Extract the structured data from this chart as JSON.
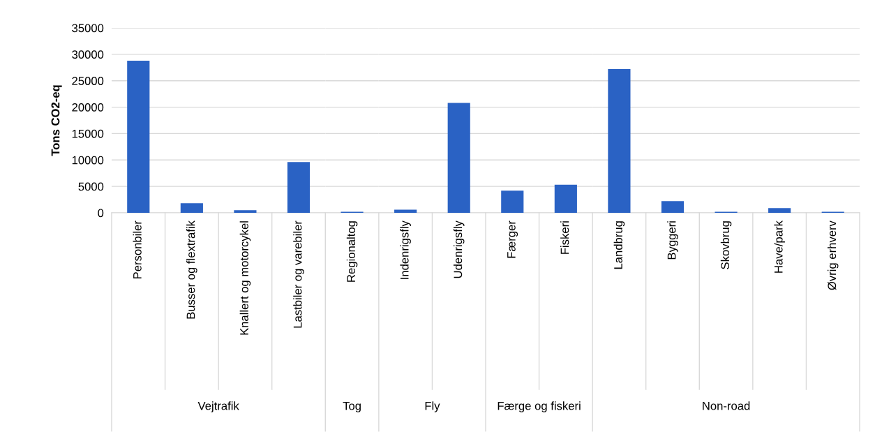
{
  "chart_data": [
    {
      "type": "bar",
      "ylabel": "Tons CO2-eq",
      "xlabel": "Vejtrafik",
      "categories": [
        "Personbiler",
        "Busser og flextrafik",
        "Knallert og motorcykel",
        "Lastbiler og varebiler"
      ],
      "values": [
        28800,
        1800,
        500,
        9600
      ],
      "color": "#2a62c4",
      "ylim": [
        0,
        35000
      ],
      "yticks": [
        0,
        5000,
        10000,
        15000,
        20000,
        25000,
        30000,
        35000
      ],
      "grid": "y"
    },
    {
      "type": "bar",
      "xlabel": "Tog",
      "categories": [
        "Regionaltog"
      ],
      "values": [
        200
      ],
      "color": "#2a62c4",
      "ylim": [
        0,
        35000
      ],
      "yticks": [
        0,
        5000,
        10000,
        15000,
        20000,
        25000,
        30000,
        35000
      ],
      "grid": "y",
      "tick_labels": "x"
    },
    {
      "type": "bar",
      "xlabel": "Fly",
      "categories": [
        "Indenrigsfly",
        "Udenrigsfly"
      ],
      "values": [
        600,
        20800
      ],
      "color": "#2a62c4",
      "ylim": [
        0,
        35000
      ],
      "yticks": [
        0,
        5000,
        10000,
        15000,
        20000,
        25000,
        30000,
        35000
      ],
      "grid": "y",
      "tick_labels": "x"
    },
    {
      "type": "bar",
      "xlabel": "Færge og fiskeri",
      "categories": [
        "Færger",
        "Fiskeri"
      ],
      "values": [
        4200,
        5300
      ],
      "color": "#2a62c4",
      "ylim": [
        0,
        35000
      ],
      "yticks": [
        0,
        5000,
        10000,
        15000,
        20000,
        25000,
        30000,
        35000
      ],
      "grid": "y",
      "tick_labels": "x"
    },
    {
      "type": "bar",
      "xlabel": "Non-road",
      "categories": [
        "Landbrug",
        "Byggeri",
        "Skovbrug",
        "Have/park",
        "Øvrig erhverv"
      ],
      "values": [
        27200,
        2200,
        200,
        900,
        200
      ],
      "color": "#2a62c4",
      "ylim": [
        0,
        35000
      ],
      "yticks": [
        0,
        5000,
        10000,
        15000,
        20000,
        25000,
        30000,
        35000
      ],
      "grid": "y",
      "tick_labels": "x"
    }
  ]
}
